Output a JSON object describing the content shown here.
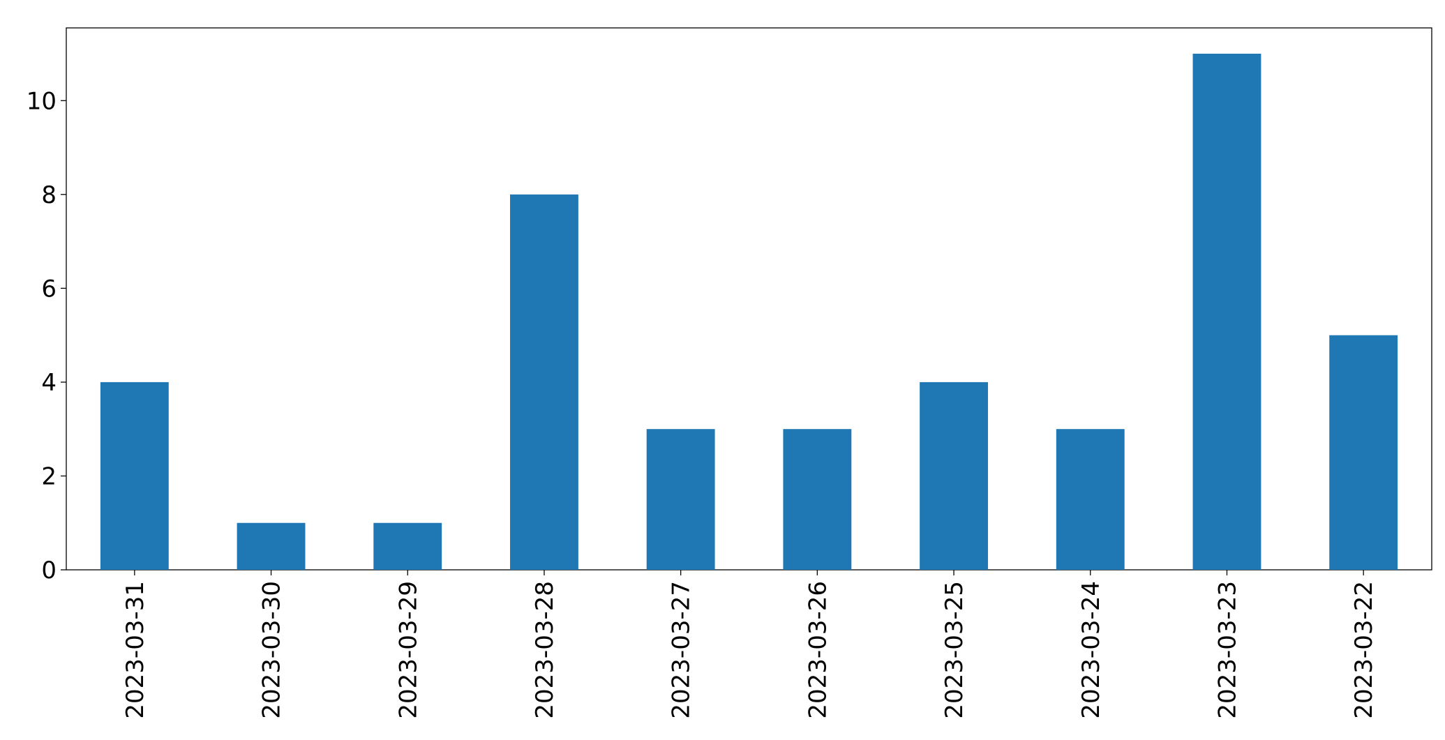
{
  "chart_data": {
    "type": "bar",
    "categories": [
      "2023-03-31",
      "2023-03-30",
      "2023-03-29",
      "2023-03-28",
      "2023-03-27",
      "2023-03-26",
      "2023-03-25",
      "2023-03-24",
      "2023-03-23",
      "2023-03-22"
    ],
    "values": [
      4,
      1,
      1,
      8,
      3,
      3,
      4,
      3,
      11,
      5
    ],
    "color": "#1f77b4",
    "ylim": [
      0,
      11.55
    ],
    "yticks": [
      0,
      2,
      4,
      6,
      8,
      10
    ],
    "grid": false
  }
}
